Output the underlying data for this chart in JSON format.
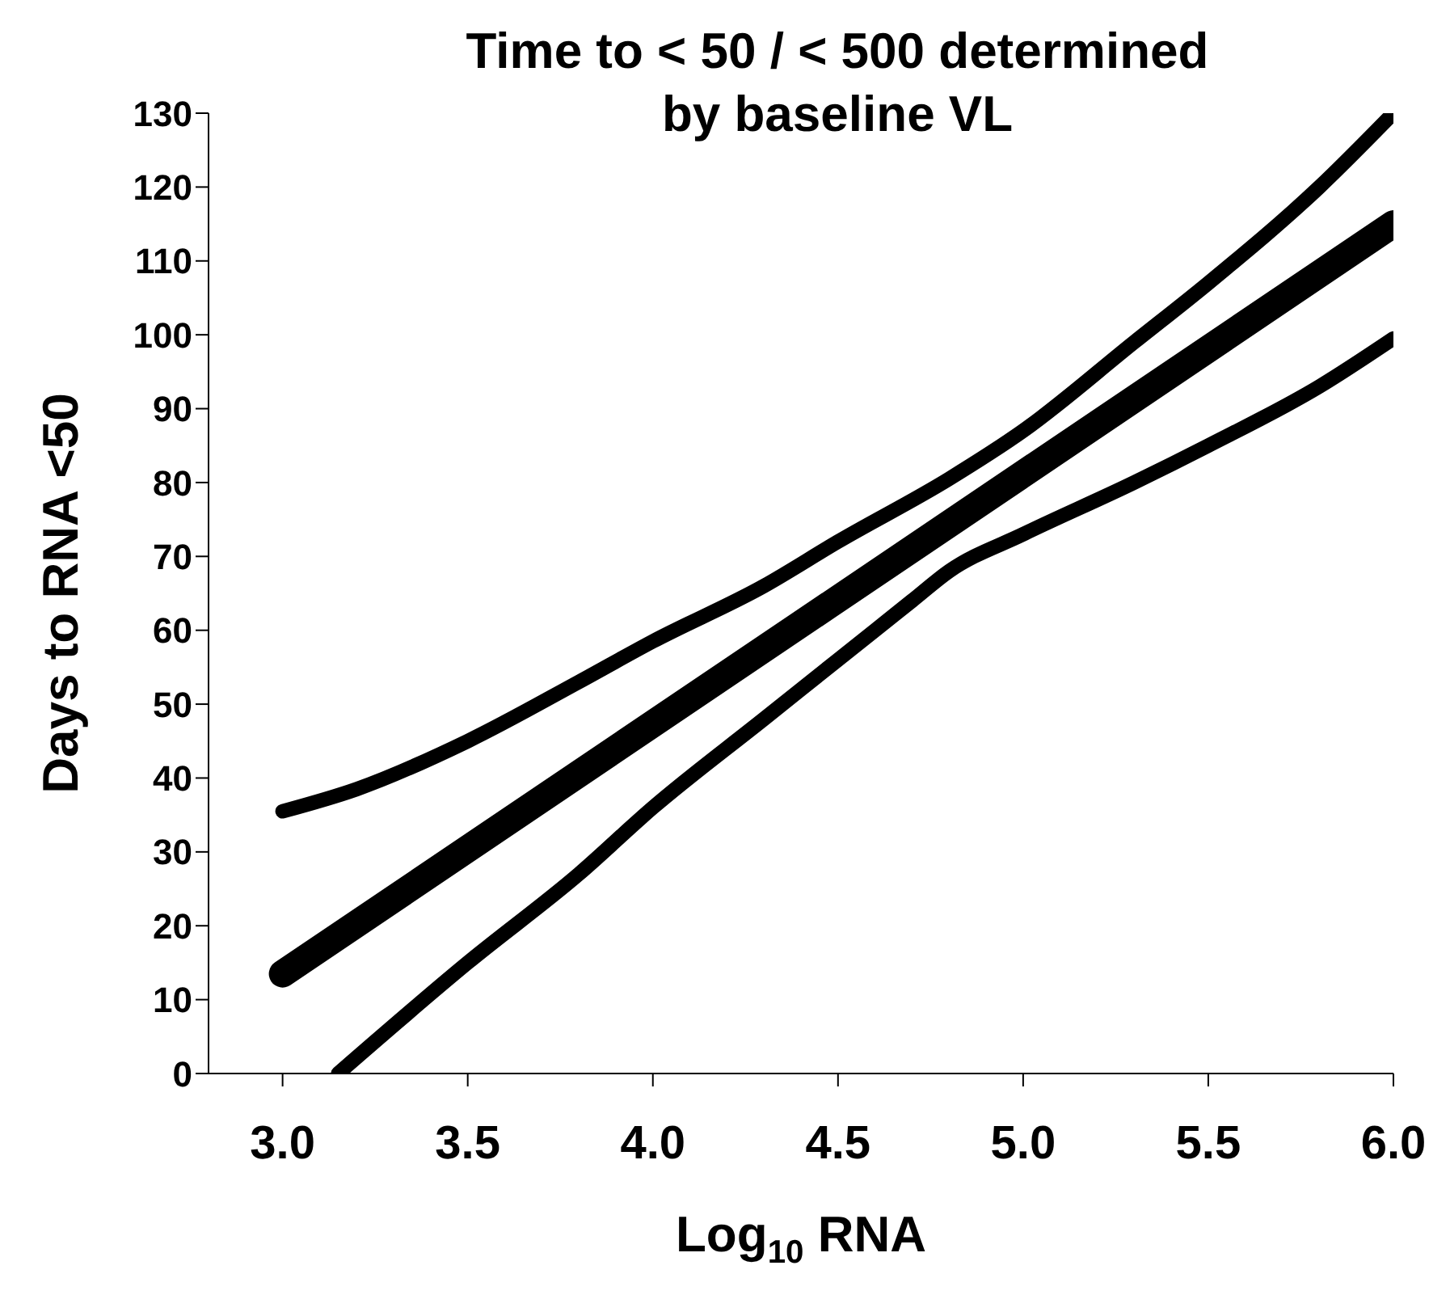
{
  "chart_data": {
    "type": "line",
    "title": "Time to < 50 / < 500 determined\nby baseline VL",
    "xlabel": "Log$_{10}$ RNA",
    "ylabel": "Days to RNA <50",
    "xlim": [
      2.8,
      6.0
    ],
    "xticks": [
      {
        "value": 3.0,
        "label": "3.0"
      },
      {
        "value": 3.5,
        "label": "3.5"
      },
      {
        "value": 4.0,
        "label": "4.0"
      },
      {
        "value": 4.5,
        "label": "4.5"
      },
      {
        "value": 5.0,
        "label": "5.0"
      },
      {
        "value": 5.5,
        "label": "5.5"
      },
      {
        "value": 6.0,
        "label": "6.0"
      }
    ],
    "ylim": [
      0,
      130
    ],
    "yticks": [
      0,
      10,
      20,
      30,
      40,
      50,
      60,
      70,
      80,
      90,
      100,
      110,
      120,
      130
    ],
    "grid": false,
    "marker": "none",
    "line_style": "solid",
    "series": [
      {
        "color": "#000000",
        "x": [
          3.0,
          3.2,
          3.5,
          3.8,
          4.0,
          4.3,
          4.5,
          4.8,
          5.0,
          5.3,
          5.5,
          5.8,
          6.0
        ],
        "values": [
          35.5,
          38.5,
          45,
          53,
          58.5,
          66,
          72,
          80.5,
          87,
          99,
          107,
          120,
          130
        ]
      },
      {
        "color": "#000000",
        "x": [
          3.0,
          6.0
        ],
        "values": [
          13.5,
          115
        ]
      },
      {
        "color": "#000000",
        "x": [
          3.15,
          3.5,
          3.8,
          4.0,
          4.3,
          4.5,
          4.7,
          4.8,
          5.0,
          5.3,
          5.5,
          5.8,
          6.0
        ],
        "values": [
          0,
          15,
          27,
          36,
          48,
          56,
          64,
          68,
          73,
          80,
          85,
          93,
          99.5
        ]
      }
    ]
  }
}
